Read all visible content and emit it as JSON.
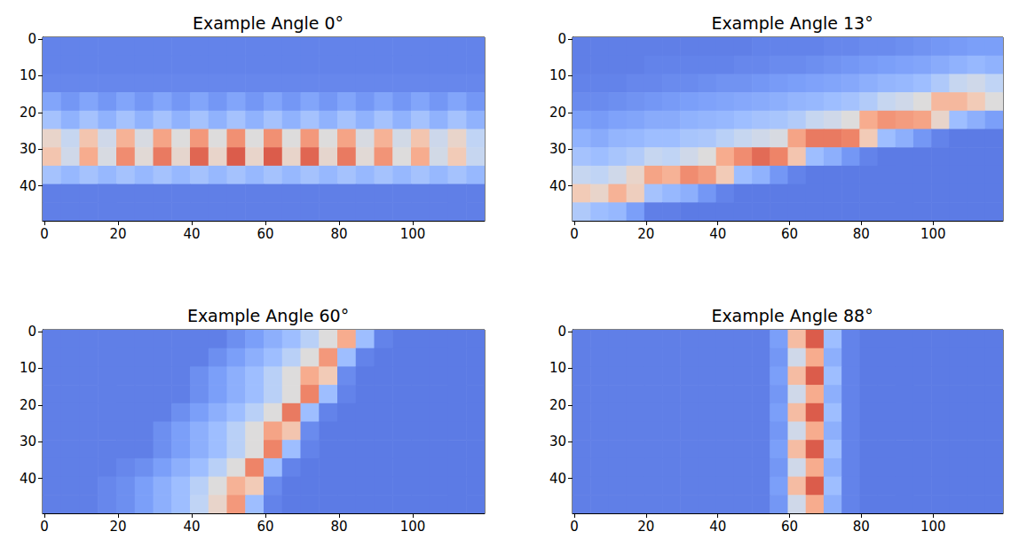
{
  "chart_data": [
    {
      "type": "heatmap",
      "title": "Example Angle 0°",
      "x": [
        2,
        7,
        12,
        17,
        22,
        27,
        32,
        37,
        42,
        47,
        52,
        57,
        62,
        67,
        72,
        77,
        82,
        87,
        92,
        97,
        102,
        107,
        112,
        117
      ],
      "y": [
        2,
        7,
        12,
        17,
        22,
        27,
        32,
        37,
        42,
        47
      ],
      "cells": [
        [
          0.13,
          0.13,
          0.13,
          0.13,
          0.13,
          0.13,
          0.13,
          0.13,
          0.13,
          0.13,
          0.13,
          0.13,
          0.13,
          0.13,
          0.13,
          0.13,
          0.13,
          0.13,
          0.13,
          0.13,
          0.13,
          0.13,
          0.13,
          0.13
        ],
        [
          0.13,
          0.13,
          0.13,
          0.13,
          0.13,
          0.13,
          0.13,
          0.13,
          0.13,
          0.13,
          0.13,
          0.13,
          0.13,
          0.13,
          0.13,
          0.13,
          0.13,
          0.13,
          0.13,
          0.13,
          0.13,
          0.13,
          0.13,
          0.13
        ],
        [
          0.14,
          0.14,
          0.14,
          0.14,
          0.14,
          0.14,
          0.14,
          0.14,
          0.14,
          0.14,
          0.14,
          0.14,
          0.14,
          0.14,
          0.14,
          0.14,
          0.14,
          0.14,
          0.14,
          0.14,
          0.14,
          0.14,
          0.14,
          0.14
        ],
        [
          0.22,
          0.18,
          0.22,
          0.18,
          0.22,
          0.18,
          0.22,
          0.18,
          0.22,
          0.18,
          0.22,
          0.18,
          0.22,
          0.18,
          0.22,
          0.18,
          0.22,
          0.18,
          0.22,
          0.18,
          0.22,
          0.18,
          0.22,
          0.18
        ],
        [
          0.32,
          0.26,
          0.32,
          0.26,
          0.32,
          0.26,
          0.32,
          0.26,
          0.32,
          0.26,
          0.32,
          0.26,
          0.32,
          0.26,
          0.32,
          0.26,
          0.32,
          0.26,
          0.32,
          0.26,
          0.32,
          0.26,
          0.32,
          0.26
        ],
        [
          0.55,
          0.42,
          0.62,
          0.45,
          0.68,
          0.48,
          0.72,
          0.5,
          0.75,
          0.5,
          0.77,
          0.5,
          0.77,
          0.5,
          0.75,
          0.5,
          0.72,
          0.48,
          0.68,
          0.46,
          0.62,
          0.44,
          0.55,
          0.4
        ],
        [
          0.62,
          0.45,
          0.7,
          0.48,
          0.78,
          0.52,
          0.82,
          0.54,
          0.86,
          0.55,
          0.88,
          0.55,
          0.88,
          0.55,
          0.86,
          0.54,
          0.82,
          0.52,
          0.76,
          0.5,
          0.7,
          0.46,
          0.6,
          0.42
        ],
        [
          0.32,
          0.28,
          0.32,
          0.28,
          0.32,
          0.28,
          0.32,
          0.28,
          0.32,
          0.28,
          0.32,
          0.28,
          0.32,
          0.28,
          0.32,
          0.28,
          0.32,
          0.28,
          0.32,
          0.28,
          0.32,
          0.28,
          0.32,
          0.28
        ],
        [
          0.12,
          0.12,
          0.12,
          0.12,
          0.12,
          0.12,
          0.12,
          0.12,
          0.12,
          0.12,
          0.12,
          0.12,
          0.12,
          0.12,
          0.12,
          0.12,
          0.12,
          0.12,
          0.12,
          0.12,
          0.12,
          0.12,
          0.12,
          0.12
        ],
        [
          0.12,
          0.12,
          0.12,
          0.12,
          0.12,
          0.12,
          0.12,
          0.12,
          0.12,
          0.12,
          0.12,
          0.12,
          0.12,
          0.12,
          0.12,
          0.12,
          0.12,
          0.12,
          0.12,
          0.12,
          0.12,
          0.12,
          0.12,
          0.12
        ]
      ],
      "value_range": [
        0,
        1
      ],
      "xlim": [
        -0.5,
        119.5
      ],
      "ylim": [
        -0.5,
        49.5
      ],
      "xticks": [
        0,
        20,
        40,
        60,
        80,
        100
      ],
      "yticks": [
        0,
        10,
        20,
        30,
        40
      ],
      "grid": false
    },
    {
      "type": "heatmap",
      "title": "Example Angle 13°",
      "x": [
        2,
        7,
        12,
        17,
        22,
        27,
        32,
        37,
        42,
        47,
        52,
        57,
        62,
        67,
        72,
        77,
        82,
        87,
        92,
        97,
        102,
        107,
        112,
        117
      ],
      "y": [
        2,
        7,
        12,
        17,
        22,
        27,
        32,
        37,
        42,
        47
      ],
      "cells": [
        [
          0.12,
          0.12,
          0.12,
          0.12,
          0.12,
          0.12,
          0.12,
          0.12,
          0.12,
          0.12,
          0.13,
          0.13,
          0.13,
          0.13,
          0.14,
          0.14,
          0.15,
          0.15,
          0.16,
          0.17,
          0.18,
          0.19,
          0.2,
          0.2
        ],
        [
          0.12,
          0.12,
          0.12,
          0.12,
          0.13,
          0.13,
          0.13,
          0.13,
          0.13,
          0.14,
          0.14,
          0.15,
          0.15,
          0.16,
          0.17,
          0.18,
          0.19,
          0.2,
          0.21,
          0.22,
          0.24,
          0.26,
          0.28,
          0.26
        ],
        [
          0.13,
          0.13,
          0.13,
          0.14,
          0.14,
          0.15,
          0.15,
          0.16,
          0.17,
          0.17,
          0.18,
          0.19,
          0.2,
          0.21,
          0.22,
          0.23,
          0.25,
          0.27,
          0.28,
          0.3,
          0.35,
          0.42,
          0.45,
          0.4
        ],
        [
          0.15,
          0.15,
          0.16,
          0.17,
          0.18,
          0.19,
          0.2,
          0.21,
          0.22,
          0.23,
          0.24,
          0.25,
          0.27,
          0.28,
          0.3,
          0.32,
          0.36,
          0.42,
          0.45,
          0.5,
          0.66,
          0.66,
          0.6,
          0.5
        ],
        [
          0.2,
          0.19,
          0.21,
          0.22,
          0.24,
          0.24,
          0.26,
          0.27,
          0.28,
          0.3,
          0.32,
          0.33,
          0.36,
          0.42,
          0.45,
          0.5,
          0.7,
          0.76,
          0.74,
          0.72,
          0.55,
          0.3,
          0.25,
          0.2
        ],
        [
          0.26,
          0.24,
          0.27,
          0.28,
          0.3,
          0.3,
          0.33,
          0.34,
          0.38,
          0.42,
          0.45,
          0.48,
          0.72,
          0.82,
          0.82,
          0.8,
          0.6,
          0.3,
          0.25,
          0.18,
          0.13,
          0.11,
          0.11,
          0.11
        ],
        [
          0.32,
          0.3,
          0.33,
          0.36,
          0.42,
          0.4,
          0.45,
          0.5,
          0.7,
          0.78,
          0.85,
          0.8,
          0.62,
          0.3,
          0.25,
          0.18,
          0.13,
          0.11,
          0.11,
          0.11,
          0.11,
          0.11,
          0.11,
          0.11
        ],
        [
          0.42,
          0.4,
          0.45,
          0.55,
          0.72,
          0.68,
          0.78,
          0.74,
          0.6,
          0.3,
          0.26,
          0.18,
          0.13,
          0.11,
          0.11,
          0.11,
          0.11,
          0.11,
          0.11,
          0.11,
          0.11,
          0.11,
          0.11,
          0.11
        ],
        [
          0.6,
          0.55,
          0.68,
          0.58,
          0.32,
          0.28,
          0.25,
          0.18,
          0.13,
          0.11,
          0.11,
          0.11,
          0.11,
          0.11,
          0.11,
          0.11,
          0.11,
          0.11,
          0.11,
          0.11,
          0.11,
          0.11,
          0.11,
          0.11
        ],
        [
          0.35,
          0.3,
          0.28,
          0.2,
          0.12,
          0.12,
          0.11,
          0.11,
          0.11,
          0.11,
          0.11,
          0.11,
          0.11,
          0.11,
          0.11,
          0.11,
          0.11,
          0.11,
          0.11,
          0.11,
          0.11,
          0.11,
          0.11,
          0.11
        ]
      ],
      "value_range": [
        0,
        1
      ],
      "xlim": [
        -0.5,
        119.5
      ],
      "ylim": [
        -0.5,
        49.5
      ],
      "xticks": [
        0,
        20,
        40,
        60,
        80,
        100
      ],
      "yticks": [
        0,
        10,
        20,
        30,
        40
      ],
      "grid": false
    },
    {
      "type": "heatmap",
      "title": "Example Angle 60°",
      "x": [
        2,
        7,
        12,
        17,
        22,
        27,
        32,
        37,
        42,
        47,
        52,
        57,
        62,
        67,
        72,
        77,
        82,
        87,
        92,
        97,
        102,
        107,
        112,
        117
      ],
      "y": [
        2,
        7,
        12,
        17,
        22,
        27,
        32,
        37,
        42,
        47
      ],
      "cells": [
        [
          0.12,
          0.12,
          0.12,
          0.12,
          0.12,
          0.12,
          0.12,
          0.12,
          0.12,
          0.12,
          0.16,
          0.2,
          0.25,
          0.3,
          0.38,
          0.5,
          0.7,
          0.3,
          0.13,
          0.11,
          0.11,
          0.11,
          0.11,
          0.11
        ],
        [
          0.12,
          0.12,
          0.12,
          0.12,
          0.12,
          0.12,
          0.12,
          0.12,
          0.12,
          0.16,
          0.2,
          0.25,
          0.3,
          0.38,
          0.5,
          0.75,
          0.3,
          0.13,
          0.11,
          0.11,
          0.11,
          0.11,
          0.11,
          0.11
        ],
        [
          0.12,
          0.12,
          0.12,
          0.12,
          0.12,
          0.12,
          0.12,
          0.12,
          0.16,
          0.2,
          0.25,
          0.3,
          0.38,
          0.5,
          0.7,
          0.6,
          0.15,
          0.11,
          0.11,
          0.11,
          0.11,
          0.11,
          0.11,
          0.11
        ],
        [
          0.12,
          0.12,
          0.12,
          0.12,
          0.12,
          0.12,
          0.12,
          0.12,
          0.16,
          0.2,
          0.25,
          0.3,
          0.38,
          0.5,
          0.8,
          0.3,
          0.13,
          0.11,
          0.11,
          0.11,
          0.11,
          0.11,
          0.11,
          0.11
        ],
        [
          0.12,
          0.12,
          0.12,
          0.12,
          0.12,
          0.12,
          0.12,
          0.16,
          0.2,
          0.25,
          0.3,
          0.38,
          0.5,
          0.82,
          0.3,
          0.13,
          0.11,
          0.11,
          0.11,
          0.11,
          0.11,
          0.11,
          0.11,
          0.11
        ],
        [
          0.12,
          0.12,
          0.12,
          0.12,
          0.12,
          0.12,
          0.16,
          0.2,
          0.25,
          0.3,
          0.38,
          0.5,
          0.72,
          0.62,
          0.15,
          0.11,
          0.11,
          0.11,
          0.11,
          0.11,
          0.11,
          0.11,
          0.11,
          0.11
        ],
        [
          0.12,
          0.12,
          0.12,
          0.12,
          0.12,
          0.12,
          0.16,
          0.2,
          0.25,
          0.3,
          0.38,
          0.5,
          0.8,
          0.3,
          0.13,
          0.11,
          0.11,
          0.11,
          0.11,
          0.11,
          0.11,
          0.11,
          0.11,
          0.11
        ],
        [
          0.12,
          0.12,
          0.12,
          0.12,
          0.14,
          0.16,
          0.2,
          0.25,
          0.3,
          0.38,
          0.5,
          0.8,
          0.3,
          0.13,
          0.11,
          0.11,
          0.11,
          0.11,
          0.11,
          0.11,
          0.11,
          0.11,
          0.11,
          0.11
        ],
        [
          0.12,
          0.12,
          0.12,
          0.14,
          0.16,
          0.2,
          0.25,
          0.3,
          0.38,
          0.5,
          0.68,
          0.6,
          0.15,
          0.11,
          0.11,
          0.11,
          0.11,
          0.11,
          0.11,
          0.11,
          0.11,
          0.11,
          0.11,
          0.11
        ],
        [
          0.12,
          0.12,
          0.12,
          0.14,
          0.16,
          0.2,
          0.25,
          0.3,
          0.4,
          0.55,
          0.75,
          0.3,
          0.13,
          0.11,
          0.11,
          0.11,
          0.11,
          0.11,
          0.11,
          0.11,
          0.11,
          0.11,
          0.11,
          0.11
        ]
      ],
      "value_range": [
        0,
        1
      ],
      "xlim": [
        -0.5,
        119.5
      ],
      "ylim": [
        -0.5,
        49.5
      ],
      "xticks": [
        0,
        20,
        40,
        60,
        80,
        100
      ],
      "yticks": [
        0,
        10,
        20,
        30,
        40
      ],
      "grid": false
    },
    {
      "type": "heatmap",
      "title": "Example Angle 88°",
      "x": [
        2,
        7,
        12,
        17,
        22,
        27,
        32,
        37,
        42,
        47,
        52,
        57,
        62,
        67,
        72,
        77,
        82,
        87,
        92,
        97,
        102,
        107,
        112,
        117
      ],
      "y": [
        2,
        7,
        12,
        17,
        22,
        27,
        32,
        37,
        42,
        47
      ],
      "cells": [
        [
          0.12,
          0.12,
          0.12,
          0.12,
          0.12,
          0.12,
          0.12,
          0.12,
          0.12,
          0.12,
          0.12,
          0.2,
          0.65,
          0.88,
          0.3,
          0.13,
          0.11,
          0.11,
          0.11,
          0.11,
          0.11,
          0.11,
          0.11,
          0.11
        ],
        [
          0.12,
          0.12,
          0.12,
          0.12,
          0.12,
          0.12,
          0.12,
          0.12,
          0.12,
          0.12,
          0.12,
          0.18,
          0.45,
          0.7,
          0.25,
          0.13,
          0.11,
          0.11,
          0.11,
          0.11,
          0.11,
          0.11,
          0.11,
          0.11
        ],
        [
          0.12,
          0.12,
          0.12,
          0.12,
          0.12,
          0.12,
          0.12,
          0.12,
          0.12,
          0.12,
          0.12,
          0.2,
          0.65,
          0.88,
          0.3,
          0.13,
          0.11,
          0.11,
          0.11,
          0.11,
          0.11,
          0.11,
          0.11,
          0.11
        ],
        [
          0.12,
          0.12,
          0.12,
          0.12,
          0.12,
          0.12,
          0.12,
          0.12,
          0.12,
          0.12,
          0.12,
          0.18,
          0.45,
          0.7,
          0.25,
          0.13,
          0.11,
          0.11,
          0.11,
          0.11,
          0.11,
          0.11,
          0.11,
          0.11
        ],
        [
          0.12,
          0.12,
          0.12,
          0.12,
          0.12,
          0.12,
          0.12,
          0.12,
          0.12,
          0.12,
          0.12,
          0.2,
          0.65,
          0.88,
          0.3,
          0.13,
          0.11,
          0.11,
          0.11,
          0.11,
          0.11,
          0.11,
          0.11,
          0.11
        ],
        [
          0.12,
          0.12,
          0.12,
          0.12,
          0.12,
          0.12,
          0.12,
          0.12,
          0.12,
          0.12,
          0.12,
          0.18,
          0.45,
          0.7,
          0.25,
          0.13,
          0.11,
          0.11,
          0.11,
          0.11,
          0.11,
          0.11,
          0.11,
          0.11
        ],
        [
          0.12,
          0.12,
          0.12,
          0.12,
          0.12,
          0.12,
          0.12,
          0.12,
          0.12,
          0.12,
          0.12,
          0.2,
          0.65,
          0.88,
          0.3,
          0.13,
          0.11,
          0.11,
          0.11,
          0.11,
          0.11,
          0.11,
          0.11,
          0.11
        ],
        [
          0.12,
          0.12,
          0.12,
          0.12,
          0.12,
          0.12,
          0.12,
          0.12,
          0.12,
          0.12,
          0.12,
          0.18,
          0.45,
          0.7,
          0.25,
          0.13,
          0.11,
          0.11,
          0.11,
          0.11,
          0.11,
          0.11,
          0.11,
          0.11
        ],
        [
          0.12,
          0.12,
          0.12,
          0.12,
          0.12,
          0.12,
          0.12,
          0.12,
          0.12,
          0.12,
          0.12,
          0.2,
          0.65,
          0.88,
          0.3,
          0.13,
          0.11,
          0.11,
          0.11,
          0.11,
          0.11,
          0.11,
          0.11,
          0.11
        ],
        [
          0.12,
          0.12,
          0.12,
          0.12,
          0.12,
          0.12,
          0.12,
          0.12,
          0.12,
          0.12,
          0.12,
          0.18,
          0.45,
          0.7,
          0.25,
          0.13,
          0.11,
          0.11,
          0.11,
          0.11,
          0.11,
          0.11,
          0.11,
          0.11
        ]
      ],
      "value_range": [
        0,
        1
      ],
      "xlim": [
        -0.5,
        119.5
      ],
      "ylim": [
        -0.5,
        49.5
      ],
      "xticks": [
        0,
        20,
        40,
        60,
        80,
        100
      ],
      "yticks": [
        0,
        10,
        20,
        30,
        40
      ],
      "grid": false
    }
  ]
}
